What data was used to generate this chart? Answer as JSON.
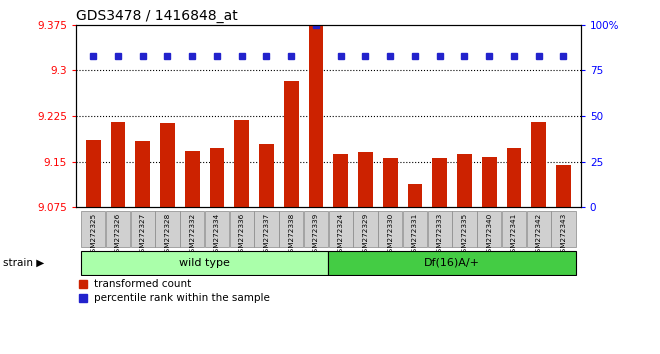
{
  "title": "GDS3478 / 1416848_at",
  "categories": [
    "GSM272325",
    "GSM272326",
    "GSM272327",
    "GSM272328",
    "GSM272332",
    "GSM272334",
    "GSM272336",
    "GSM272337",
    "GSM272338",
    "GSM272339",
    "GSM272324",
    "GSM272329",
    "GSM272330",
    "GSM272331",
    "GSM272333",
    "GSM272335",
    "GSM272340",
    "GSM272341",
    "GSM272342",
    "GSM272343"
  ],
  "bar_values": [
    9.185,
    9.215,
    9.183,
    9.213,
    9.168,
    9.172,
    9.218,
    9.178,
    9.282,
    9.375,
    9.162,
    9.165,
    9.156,
    9.113,
    9.155,
    9.162,
    9.157,
    9.172,
    9.215,
    9.145
  ],
  "percentile_values": [
    83,
    83,
    83,
    83,
    83,
    83,
    83,
    83,
    83,
    100,
    83,
    83,
    83,
    83,
    83,
    83,
    83,
    83,
    83,
    83
  ],
  "group1_count": 10,
  "group2_count": 10,
  "group1_label": "wild type",
  "group2_label": "Df(16)A/+",
  "group1_color": "#aaffaa",
  "group2_color": "#44cc44",
  "bar_color": "#cc2200",
  "dot_color": "#2222cc",
  "ylim_left": [
    9.075,
    9.375
  ],
  "ylim_right": [
    0,
    100
  ],
  "yticks_left": [
    9.075,
    9.15,
    9.225,
    9.3,
    9.375
  ],
  "ytick_labels_left": [
    "9.075",
    "9.15",
    "9.225",
    "9.3",
    "9.375"
  ],
  "yticks_right": [
    0,
    25,
    50,
    75,
    100
  ],
  "ytick_labels_right": [
    "0",
    "25",
    "50",
    "75",
    "100%"
  ],
  "hlines": [
    9.15,
    9.225,
    9.3
  ],
  "legend_bar_label": "transformed count",
  "legend_dot_label": "percentile rank within the sample",
  "strain_label": "strain",
  "bar_width": 0.6,
  "tick_box_color": "#d0d0d0"
}
